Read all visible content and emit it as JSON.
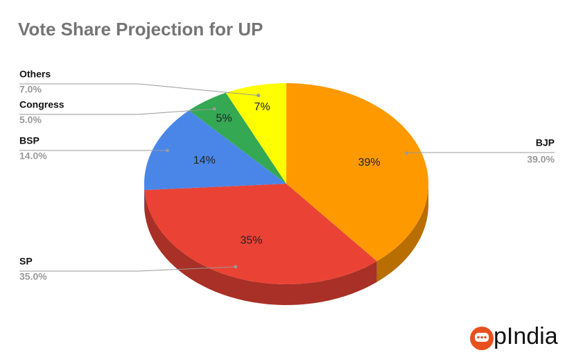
{
  "chart_data": {
    "type": "pie",
    "title": "Vote Share Projection for UP",
    "categories": [
      "BJP",
      "SP",
      "BSP",
      "Congress",
      "Others"
    ],
    "values": [
      39,
      35,
      14,
      5,
      7
    ],
    "value_labels": [
      "39%",
      "35%",
      "14%",
      "5%",
      "7%"
    ],
    "callout_labels": [
      "39.0%",
      "35.0%",
      "14.0%",
      "5.0%",
      "7.0%"
    ],
    "colors": [
      "#ff9900",
      "#ea4335",
      "#4a86e8",
      "#34a853",
      "#ffff00"
    ]
  },
  "logo": "pIndia"
}
